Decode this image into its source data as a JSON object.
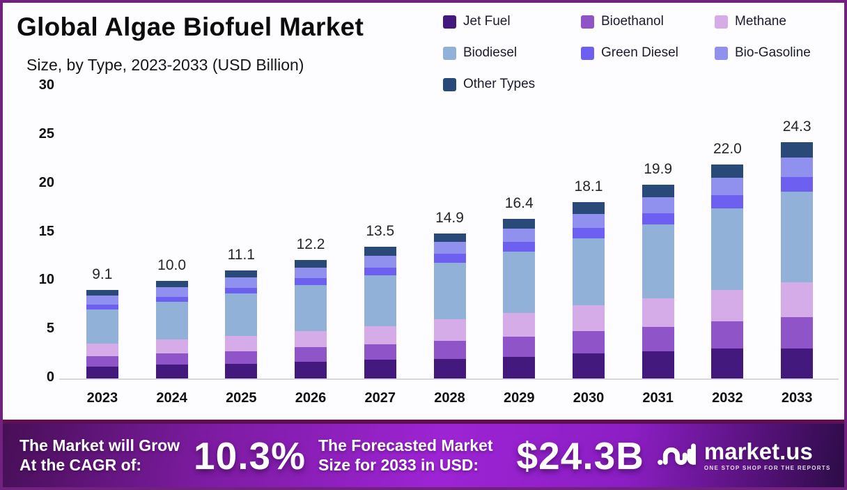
{
  "header": {
    "title": "Global Algae Biofuel Market",
    "subtitle": "Size, by Type, 2023-2033 (USD Billion)"
  },
  "chart_data": {
    "type": "bar",
    "stacked": true,
    "title": "Global Algae Biofuel Market Size, by Type, 2023-2033 (USD Billion)",
    "xlabel": "",
    "ylabel": "USD Billion",
    "ylim": [
      0,
      30
    ],
    "yticks": [
      0,
      5,
      10,
      15,
      20,
      25,
      30
    ],
    "grid": false,
    "legend_position": "top-right",
    "categories": [
      "2023",
      "2024",
      "2025",
      "2026",
      "2027",
      "2028",
      "2029",
      "2030",
      "2031",
      "2032",
      "2033"
    ],
    "series": [
      {
        "name": "Jet Fuel",
        "color": "#44197d",
        "values": [
          1.2,
          1.4,
          1.5,
          1.7,
          1.9,
          2.0,
          2.2,
          2.6,
          2.8,
          3.1,
          3.1
        ]
      },
      {
        "name": "Bioethanol",
        "color": "#8e54c8",
        "values": [
          1.1,
          1.2,
          1.3,
          1.5,
          1.6,
          1.9,
          2.1,
          2.3,
          2.5,
          2.8,
          3.2
        ]
      },
      {
        "name": "Methane",
        "color": "#d5abe8",
        "values": [
          1.3,
          1.4,
          1.6,
          1.7,
          1.9,
          2.2,
          2.4,
          2.6,
          2.9,
          3.2,
          3.6
        ]
      },
      {
        "name": "Biodiesel",
        "color": "#92b1d9",
        "values": [
          3.5,
          3.9,
          4.3,
          4.7,
          5.2,
          5.8,
          6.3,
          6.9,
          7.6,
          8.4,
          9.3
        ]
      },
      {
        "name": "Green Diesel",
        "color": "#6d5ff0",
        "values": [
          0.5,
          0.5,
          0.6,
          0.7,
          0.8,
          0.9,
          1.0,
          1.1,
          1.2,
          1.3,
          1.5
        ]
      },
      {
        "name": "Bio-Gasoline",
        "color": "#9090ef",
        "values": [
          0.9,
          1.0,
          1.1,
          1.1,
          1.2,
          1.2,
          1.4,
          1.4,
          1.6,
          1.8,
          2.0
        ]
      },
      {
        "name": "Other Types",
        "color": "#294a78",
        "values": [
          0.6,
          0.6,
          0.7,
          0.8,
          0.9,
          0.9,
          1.0,
          1.2,
          1.3,
          1.4,
          1.6
        ]
      }
    ],
    "totals": [
      "9.1",
      "10.0",
      "11.1",
      "12.2",
      "13.5",
      "14.9",
      "16.4",
      "18.1",
      "19.9",
      "22.0",
      "24.3"
    ]
  },
  "banner": {
    "cagr_label_line1": "The Market will Grow",
    "cagr_label_line2": "At the CAGR of:",
    "cagr_value": "10.3%",
    "forecast_label_line1": "The Forecasted Market",
    "forecast_label_line2": "Size for 2033 in USD:",
    "forecast_value": "$24.3B",
    "brand": "market.us",
    "tagline": "ONE STOP SHOP FOR THE REPORTS"
  },
  "colors": {
    "frame_border": "#71217e",
    "banner_gradient_left": "#470f56",
    "banner_gradient_mid": "#9d24d4",
    "banner_gradient_right": "#2c0c47",
    "banner_top_strip": "#5d1052",
    "axis_line": "#d9d6db",
    "background": "#fdfcfe"
  }
}
